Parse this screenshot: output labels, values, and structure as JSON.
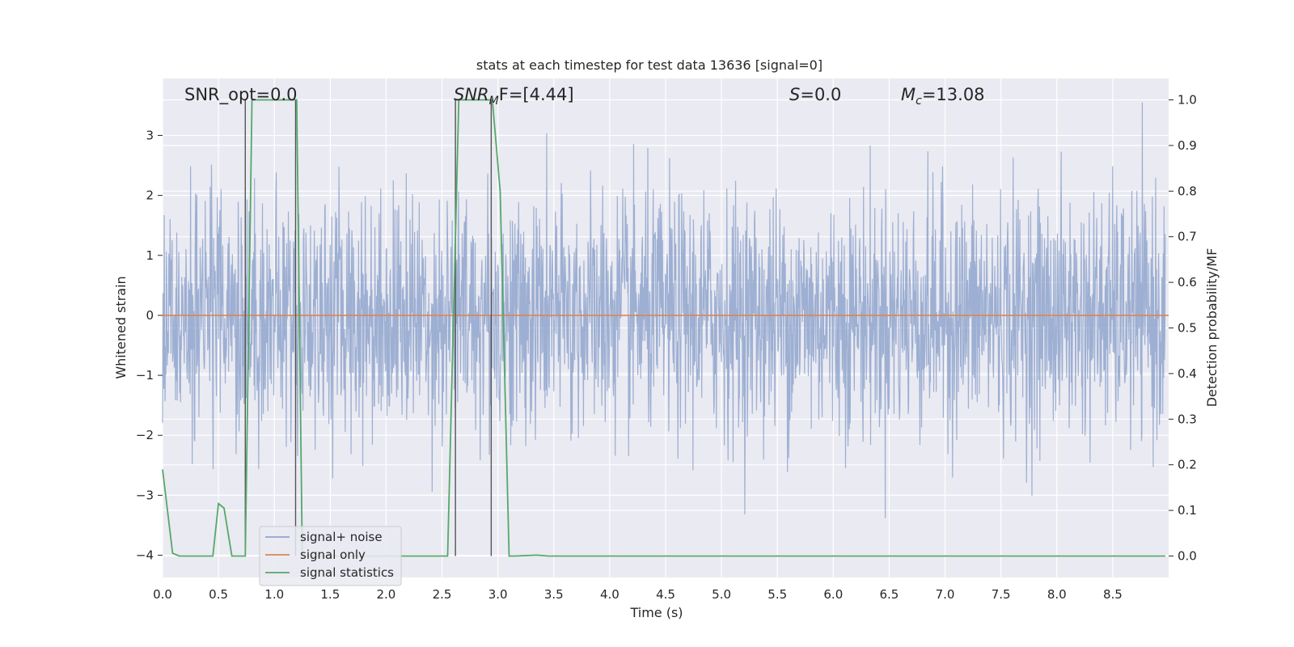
{
  "chart_data": {
    "type": "line",
    "title": "stats at each timestep for test data 13636 [signal=0]",
    "xlabel": "Time (s)",
    "ylabel_left": "Whitened strain",
    "ylabel_right": "Detection probability/MF",
    "xlim": [
      0.0,
      9.0
    ],
    "ylim_left": [
      -4.37,
      3.95
    ],
    "ylim_right": [
      -0.047,
      1.047
    ],
    "x_ticks": [
      "0.0",
      "0.5",
      "1.0",
      "1.5",
      "2.0",
      "2.5",
      "3.0",
      "3.5",
      "4.0",
      "4.5",
      "5.0",
      "5.5",
      "6.0",
      "6.5",
      "7.0",
      "7.5",
      "8.0",
      "8.5"
    ],
    "y_ticks_left": [
      "3",
      "2",
      "1",
      "0",
      "−1",
      "−2",
      "−3",
      "−4"
    ],
    "y_ticks_right": [
      "1.0",
      "0.9",
      "0.8",
      "0.7",
      "0.6",
      "0.5",
      "0.4",
      "0.3",
      "0.2",
      "0.1",
      "0.0"
    ],
    "grid": true,
    "legend_position": "lower-left",
    "annotations": {
      "snr_opt": "SNR_opt=0.0",
      "snr_mf_base": "SNR",
      "snr_mf_sub": "M",
      "snr_mf_rest": "F=[4.44]",
      "s_base": "S",
      "s_rest": "=0.0",
      "mc_base": "M",
      "mc_sub": "c",
      "mc_rest": "=13.08"
    },
    "series": [
      {
        "name": "signal+ noise",
        "color": "#8fa5cc",
        "description_values": "whitened noise, approximately symmetric about 0 with amplitude ~1.3 and spikes up to +3.5 / -4.0"
      },
      {
        "name": "signal only",
        "color": "#dd8452",
        "x": [
          0.0,
          9.0
        ],
        "y": [
          0.0,
          0.0
        ]
      },
      {
        "name": "signal statistics",
        "color": "#55a868",
        "x": [
          0.0,
          0.09,
          0.15,
          0.45,
          0.5,
          0.55,
          0.62,
          0.74,
          0.8,
          1.2,
          1.25,
          2.55,
          2.65,
          2.7,
          2.95,
          3.02,
          3.1,
          3.15,
          3.35,
          3.45,
          8.97
        ],
        "y": [
          0.19,
          0.006,
          0.0,
          0.0,
          0.115,
          0.105,
          0.0,
          0.0,
          1.0,
          1.0,
          0.0,
          0.0,
          1.0,
          1.0,
          1.0,
          0.8,
          0.0,
          0.0,
          0.002,
          0.0,
          0.0
        ]
      }
    ],
    "vertical_markers_x": [
      0.74,
      1.19,
      2.62,
      2.94
    ]
  }
}
